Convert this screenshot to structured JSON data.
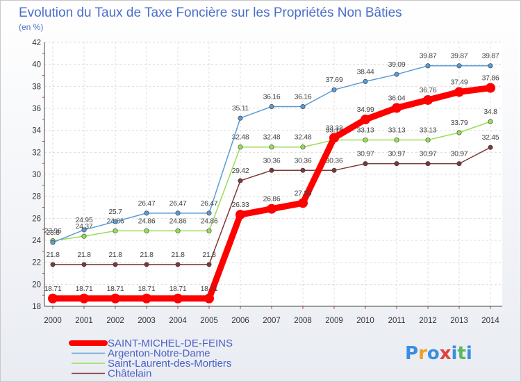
{
  "chart_data": {
    "type": "line",
    "title": "Evolution du Taux de Taxe Foncière sur les Propriétés Non Bâties",
    "subtitle": "(en %)",
    "xlabel": "",
    "ylabel": "",
    "ylim": [
      18,
      42
    ],
    "yticks": [
      "18",
      "20",
      "22",
      "24",
      "26",
      "28",
      "30",
      "32",
      "34",
      "36",
      "38",
      "40",
      "42"
    ],
    "x": [
      "2000",
      "2001",
      "2002",
      "2003",
      "2004",
      "2005",
      "2006",
      "2007",
      "2008",
      "2009",
      "2010",
      "2011",
      "2012",
      "2013",
      "2014"
    ],
    "grid": true,
    "legend_position": "bottom-left",
    "series": [
      {
        "name": "SAINT-MICHEL-DE-FEINS",
        "color": "#ff0000",
        "emphasis": true,
        "values": [
          18.71,
          18.71,
          18.71,
          18.71,
          18.71,
          18.71,
          26.33,
          26.86,
          27.39,
          33.32,
          34.99,
          36.04,
          36.76,
          37.49,
          37.86
        ],
        "labels": [
          "18.71",
          "18.71",
          "18.71",
          "18.71",
          "18.71",
          "18.71",
          "26.33",
          "26.86",
          "27.39",
          "33.32",
          "34.99",
          "36.04",
          "36.76",
          "37.49",
          "37.86"
        ]
      },
      {
        "name": "Argenton-Notre-Dame",
        "color": "#5b9bd5",
        "values": [
          23.8,
          24.95,
          25.7,
          26.47,
          26.47,
          26.47,
          35.11,
          36.16,
          36.16,
          37.69,
          38.44,
          39.09,
          39.87,
          39.87,
          39.87
        ],
        "labels": [
          "23.8",
          "24.95",
          "25.7",
          "26.47",
          "26.47",
          "26.47",
          "35.11",
          "36.16",
          "36.16",
          "37.69",
          "38.44",
          "39.09",
          "39.87",
          "39.87",
          "39.87"
        ]
      },
      {
        "name": "Saint-Laurent-des-Mortiers",
        "color": "#99dd55",
        "values": [
          23.96,
          24.37,
          24.86,
          24.86,
          24.86,
          24.86,
          32.48,
          32.48,
          32.48,
          33.13,
          33.13,
          33.13,
          33.13,
          33.79,
          34.8
        ],
        "labels": [
          "23.96",
          "24.37",
          "24.86",
          "24.86",
          "24.86",
          "24.86",
          "32.48",
          "32.48",
          "32.48",
          "33.13",
          "33.13",
          "33.13",
          "33.13",
          "33.79",
          "34.8"
        ]
      },
      {
        "name": "Châtelain",
        "color": "#7a3a3a",
        "values": [
          21.8,
          21.8,
          21.8,
          21.8,
          21.8,
          21.8,
          29.42,
          30.36,
          30.36,
          30.36,
          30.97,
          30.97,
          30.97,
          30.97,
          32.45
        ],
        "labels": [
          "21.8",
          "21.8",
          "21.8",
          "21.8",
          "21.8",
          "21.8",
          "29.42",
          "30.36",
          "30.36",
          "30.36",
          "30.97",
          "30.97",
          "30.97",
          "30.97",
          "32.45"
        ]
      }
    ]
  },
  "logo": {
    "text": "Proxiti",
    "letters": [
      "P",
      "r",
      "o",
      "x",
      "i",
      "t",
      "i"
    ],
    "colors": [
      "#3a8de0",
      "#f0a020",
      "#3a8de0",
      "#e04040",
      "#3a8de0",
      "#5cb85c",
      "#3a8de0"
    ]
  }
}
